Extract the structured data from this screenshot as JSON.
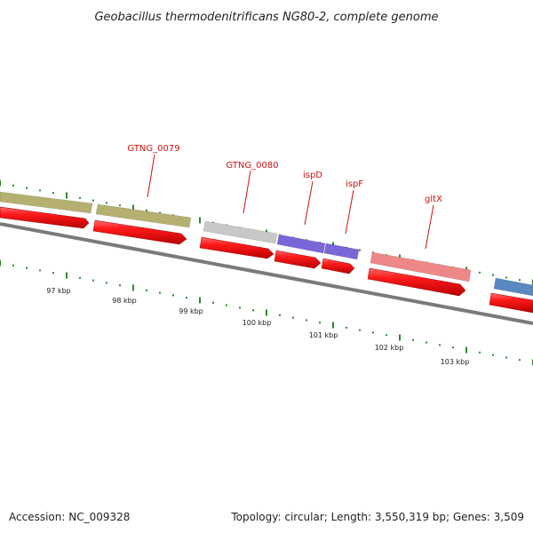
{
  "title": "Geobacillus thermodenitrificans NG80-2, complete genome",
  "footer": {
    "accession": "Accession: NC_009328",
    "summary": "Topology: circular; Length: 3,550,319 bp; Genes: 3,509"
  },
  "colors": {
    "backbone": "#7a7a7a",
    "cds_arrow": "#ee1111",
    "label": "#cc1111",
    "tick": "#2a8a2a"
  },
  "scale_labels": [
    "97 kbp",
    "98 kbp",
    "99 kbp",
    "100 kbp",
    "101 kbp",
    "102 kbp",
    "103 kbp"
  ],
  "genes": [
    {
      "label": "",
      "color": "#b5b070"
    },
    {
      "label": "GTNG_0079",
      "color": "#b5b070"
    },
    {
      "label": "GTNG_0080",
      "color": "#c8c8c8"
    },
    {
      "label": "ispD",
      "color": "#7a66d8"
    },
    {
      "label": "ispF",
      "color": "#7a66d8"
    },
    {
      "label": "gltX",
      "color": "#ee8888"
    },
    {
      "label": "",
      "color": "#5a88c0"
    }
  ]
}
